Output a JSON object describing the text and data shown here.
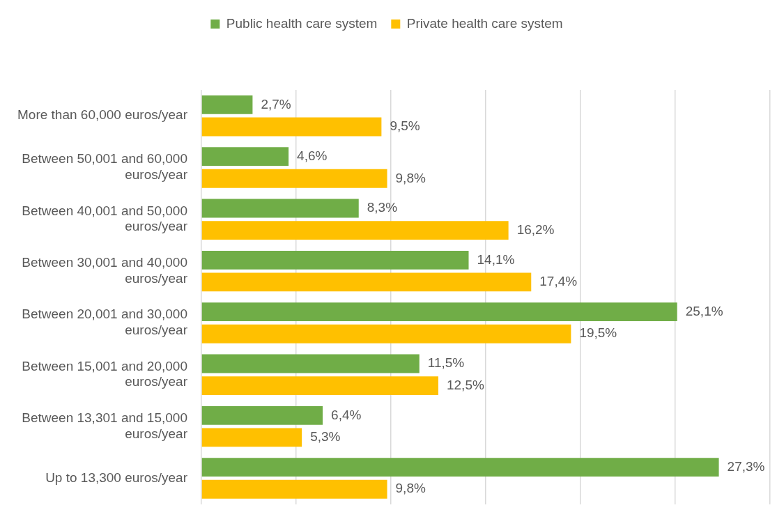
{
  "chart_data": {
    "type": "bar",
    "orientation": "horizontal",
    "categories": [
      "More than 60,000 euros/year",
      "Between 50,001 and 60,000 euros/year",
      "Between 40,001 and 50,000 euros/year",
      "Between 30,001 and 40,000 euros/year",
      "Between 20,001 and 30,000 euros/year",
      "Between 15,001 and 20,000 euros/year",
      "Between 13,301 and 15,000 euros/year",
      "Up to 13,300 euros/year"
    ],
    "series": [
      {
        "name": "Public health care system",
        "color": "#70ad47",
        "values": [
          2.7,
          4.6,
          8.3,
          14.1,
          25.1,
          11.5,
          6.4,
          27.3
        ],
        "value_labels": [
          "2,7%",
          "4,6%",
          "8,3%",
          "14,1%",
          "25,1%",
          "11,5%",
          "6,4%",
          "27,3%"
        ]
      },
      {
        "name": "Private health care system",
        "color": "#ffc000",
        "values": [
          9.5,
          9.8,
          16.2,
          17.4,
          19.5,
          12.5,
          5.3,
          9.8
        ],
        "value_labels": [
          "9,5%",
          "9,8%",
          "16,2%",
          "17,4%",
          "19,5%",
          "12,5%",
          "5,3%",
          "9,8%"
        ]
      }
    ],
    "xlim": [
      0,
      30
    ],
    "xticks": [
      {
        "value": 0,
        "label": null
      },
      {
        "value": 5,
        "label": null
      },
      {
        "value": 10,
        "label": null
      },
      {
        "value": 15,
        "label": null
      },
      {
        "value": 20,
        "label": null
      },
      {
        "value": 25,
        "label": null
      },
      {
        "value": 30,
        "label": null
      }
    ],
    "grid": "x",
    "legend": "top",
    "tick_labels": "y"
  }
}
